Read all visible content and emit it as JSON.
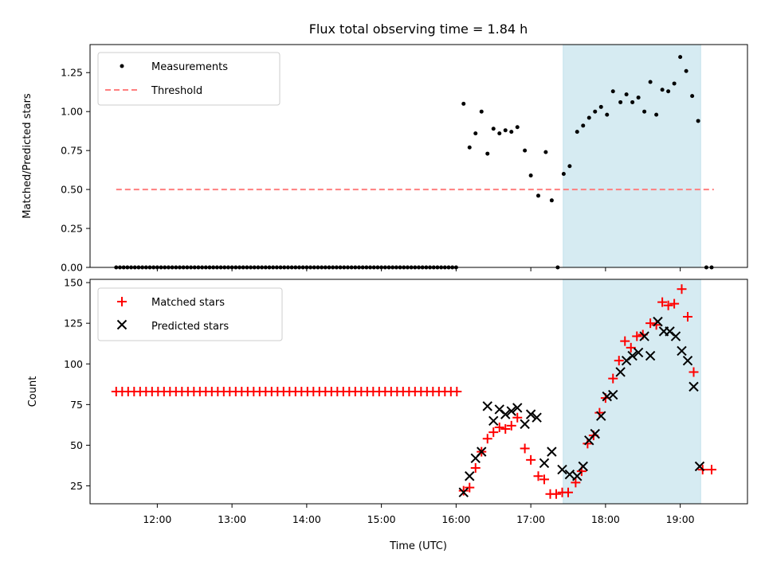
{
  "chart_data": [
    {
      "type": "scatter",
      "title": "Flux total observing time = 1.84 h",
      "xlabel": "",
      "ylabel": "Matched/Predicted stars",
      "xlim": [
        11.1,
        19.9
      ],
      "ylim": [
        0.0,
        1.43
      ],
      "yticks": [
        "0.00",
        "0.25",
        "0.50",
        "0.75",
        "1.00",
        "1.25"
      ],
      "ytick_values": [
        0.0,
        0.25,
        0.5,
        0.75,
        1.0,
        1.25
      ],
      "legend": {
        "position": "top-left",
        "entries": [
          "Measurements",
          "Threshold"
        ]
      },
      "shaded_span": {
        "x0": 17.433,
        "x1": 19.274,
        "color": "#add8e6"
      },
      "threshold": {
        "name": "Threshold",
        "y": 0.5,
        "x0": 11.45,
        "x1": 19.45,
        "color": "#ff7f7f"
      },
      "series": [
        {
          "name": "Measurements",
          "color": "#000000",
          "x": [
            11.45,
            11.5,
            11.55,
            11.6,
            11.65,
            11.7,
            11.75,
            11.8,
            11.85,
            11.9,
            11.95,
            12.0,
            12.05,
            12.1,
            12.15,
            12.2,
            12.25,
            12.3,
            12.35,
            12.4,
            12.45,
            12.5,
            12.55,
            12.6,
            12.65,
            12.7,
            12.75,
            12.8,
            12.85,
            12.9,
            12.95,
            13.0,
            13.05,
            13.1,
            13.15,
            13.2,
            13.25,
            13.3,
            13.35,
            13.4,
            13.45,
            13.5,
            13.55,
            13.6,
            13.65,
            13.7,
            13.75,
            13.8,
            13.85,
            13.9,
            13.95,
            14.0,
            14.05,
            14.1,
            14.15,
            14.2,
            14.25,
            14.3,
            14.35,
            14.4,
            14.45,
            14.5,
            14.55,
            14.6,
            14.65,
            14.7,
            14.75,
            14.8,
            14.85,
            14.9,
            14.95,
            15.0,
            15.05,
            15.1,
            15.15,
            15.2,
            15.25,
            15.3,
            15.35,
            15.4,
            15.45,
            15.5,
            15.55,
            15.6,
            15.65,
            15.7,
            15.75,
            15.8,
            15.85,
            15.9,
            15.95,
            16.0,
            16.1,
            16.18,
            16.26,
            16.34,
            16.42,
            16.5,
            16.58,
            16.66,
            16.74,
            16.82,
            16.92,
            17.0,
            17.1,
            17.2,
            17.28,
            17.36,
            17.44,
            17.52,
            17.62,
            17.7,
            17.78,
            17.86,
            17.94,
            18.02,
            18.1,
            18.2,
            18.28,
            18.36,
            18.44,
            18.52,
            18.6,
            18.68,
            18.76,
            18.84,
            18.92,
            19.0,
            19.08,
            19.16,
            19.24,
            19.35,
            19.42
          ],
          "y": [
            0,
            0,
            0,
            0,
            0,
            0,
            0,
            0,
            0,
            0,
            0,
            0,
            0,
            0,
            0,
            0,
            0,
            0,
            0,
            0,
            0,
            0,
            0,
            0,
            0,
            0,
            0,
            0,
            0,
            0,
            0,
            0,
            0,
            0,
            0,
            0,
            0,
            0,
            0,
            0,
            0,
            0,
            0,
            0,
            0,
            0,
            0,
            0,
            0,
            0,
            0,
            0,
            0,
            0,
            0,
            0,
            0,
            0,
            0,
            0,
            0,
            0,
            0,
            0,
            0,
            0,
            0,
            0,
            0,
            0,
            0,
            0,
            0,
            0,
            0,
            0,
            0,
            0,
            0,
            0,
            0,
            0,
            0,
            0,
            0,
            0,
            0,
            0,
            0,
            0,
            0,
            0,
            1.05,
            0.77,
            0.86,
            1.0,
            0.73,
            0.89,
            0.86,
            0.88,
            0.87,
            0.9,
            0.75,
            0.59,
            0.46,
            0.74,
            0.43,
            0,
            0.6,
            0.65,
            0.87,
            0.91,
            0.96,
            1.0,
            1.03,
            0.98,
            1.13,
            1.06,
            1.11,
            1.06,
            1.09,
            1.0,
            1.19,
            0.98,
            1.14,
            1.13,
            1.18,
            1.35,
            1.26,
            1.1,
            0.94,
            0,
            0
          ]
        }
      ]
    },
    {
      "type": "scatter",
      "title": "",
      "xlabel": "Time (UTC)",
      "ylabel": "Count",
      "xlim": [
        11.1,
        19.9
      ],
      "ylim": [
        14,
        152
      ],
      "yticks": [
        "25",
        "50",
        "75",
        "100",
        "125",
        "150"
      ],
      "ytick_values": [
        25,
        50,
        75,
        100,
        125,
        150
      ],
      "xticks": [
        "12:00",
        "13:00",
        "14:00",
        "15:00",
        "16:00",
        "17:00",
        "18:00",
        "19:00"
      ],
      "xtick_values": [
        12,
        13,
        14,
        15,
        16,
        17,
        18,
        19
      ],
      "legend": {
        "position": "top-left",
        "entries": [
          "Matched stars",
          "Predicted stars"
        ]
      },
      "shaded_span": {
        "x0": 17.433,
        "x1": 19.274,
        "color": "#add8e6"
      },
      "series": [
        {
          "name": "Matched stars",
          "color": "#ff0000",
          "marker": "plus",
          "x": [
            11.45,
            11.53,
            11.61,
            11.69,
            11.77,
            11.85,
            11.93,
            12.01,
            12.09,
            12.17,
            12.25,
            12.33,
            12.41,
            12.49,
            12.57,
            12.65,
            12.73,
            12.81,
            12.89,
            12.97,
            13.05,
            13.13,
            13.21,
            13.29,
            13.37,
            13.45,
            13.53,
            13.61,
            13.69,
            13.77,
            13.85,
            13.93,
            14.01,
            14.09,
            14.17,
            14.25,
            14.33,
            14.41,
            14.49,
            14.57,
            14.65,
            14.73,
            14.81,
            14.89,
            14.97,
            15.05,
            15.13,
            15.21,
            15.29,
            15.37,
            15.45,
            15.53,
            15.61,
            15.69,
            15.77,
            15.85,
            15.93,
            16.01,
            16.1,
            16.18,
            16.26,
            16.34,
            16.42,
            16.5,
            16.58,
            16.66,
            16.74,
            16.82,
            16.92,
            17.0,
            17.1,
            17.18,
            17.26,
            17.34,
            17.42,
            17.5,
            17.6,
            17.68,
            17.76,
            17.84,
            17.92,
            18.0,
            18.1,
            18.18,
            18.26,
            18.34,
            18.42,
            18.5,
            18.6,
            18.68,
            18.76,
            18.84,
            18.92,
            19.02,
            19.1,
            19.18,
            19.3,
            19.42
          ],
          "y": [
            83,
            83,
            83,
            83,
            83,
            83,
            83,
            83,
            83,
            83,
            83,
            83,
            83,
            83,
            83,
            83,
            83,
            83,
            83,
            83,
            83,
            83,
            83,
            83,
            83,
            83,
            83,
            83,
            83,
            83,
            83,
            83,
            83,
            83,
            83,
            83,
            83,
            83,
            83,
            83,
            83,
            83,
            83,
            83,
            83,
            83,
            83,
            83,
            83,
            83,
            83,
            83,
            83,
            83,
            83,
            83,
            83,
            83,
            22,
            24,
            36,
            46,
            54,
            58,
            61,
            60,
            62,
            67,
            48,
            41,
            31,
            29,
            20,
            20,
            21,
            21,
            27,
            34,
            51,
            56,
            70,
            79,
            91,
            102,
            114,
            110,
            117,
            118,
            125,
            124,
            138,
            136,
            137,
            146,
            129,
            95,
            35,
            35
          ]
        },
        {
          "name": "Predicted stars",
          "color": "#000000",
          "marker": "x",
          "x": [
            16.1,
            16.18,
            16.26,
            16.34,
            16.42,
            16.5,
            16.58,
            16.66,
            16.74,
            16.82,
            16.92,
            17.0,
            17.08,
            17.18,
            17.28,
            17.42,
            17.52,
            17.62,
            17.7,
            17.78,
            17.86,
            17.94,
            18.02,
            18.1,
            18.2,
            18.28,
            18.36,
            18.44,
            18.52,
            18.6,
            18.7,
            18.78,
            18.86,
            18.94,
            19.02,
            19.1,
            19.18,
            19.26
          ],
          "y": [
            21,
            31,
            42,
            46,
            74,
            65,
            72,
            69,
            71,
            73,
            63,
            69,
            67,
            39,
            46,
            35,
            32,
            31,
            37,
            53,
            57,
            68,
            80,
            81,
            95,
            102,
            105,
            107,
            117,
            105,
            126,
            120,
            120,
            117,
            108,
            102,
            86,
            37
          ]
        }
      ]
    }
  ]
}
